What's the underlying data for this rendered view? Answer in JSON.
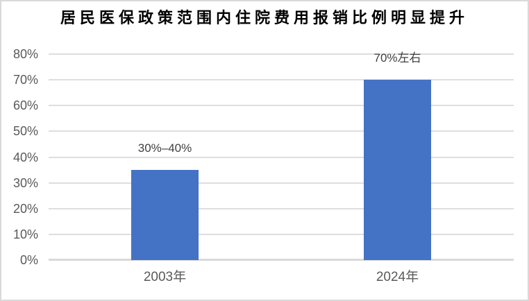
{
  "page": {
    "background": "#ffffff",
    "border_color": "#d9d9d9"
  },
  "chart_data": {
    "type": "bar",
    "title": "居民医保政策范围内住院费用报销比例明显提升",
    "categories": [
      "2003年",
      "2024年"
    ],
    "values": [
      35,
      70
    ],
    "data_labels": [
      "30%–40%",
      "70%左右"
    ],
    "xlabel": "",
    "ylabel": "",
    "ylim": [
      0,
      80
    ],
    "ytick_step": 10,
    "ytick_labels": [
      "0%",
      "10%",
      "20%",
      "30%",
      "40%",
      "50%",
      "60%",
      "70%",
      "80%"
    ],
    "grid": true,
    "legend": false,
    "bar_color": "#4472C4",
    "gridline_color": "#DEDEDE",
    "axis_line_color": "#D9D9D9",
    "tick_label_color": "#595959",
    "data_label_color": "#404040",
    "title_color": "#000000"
  }
}
